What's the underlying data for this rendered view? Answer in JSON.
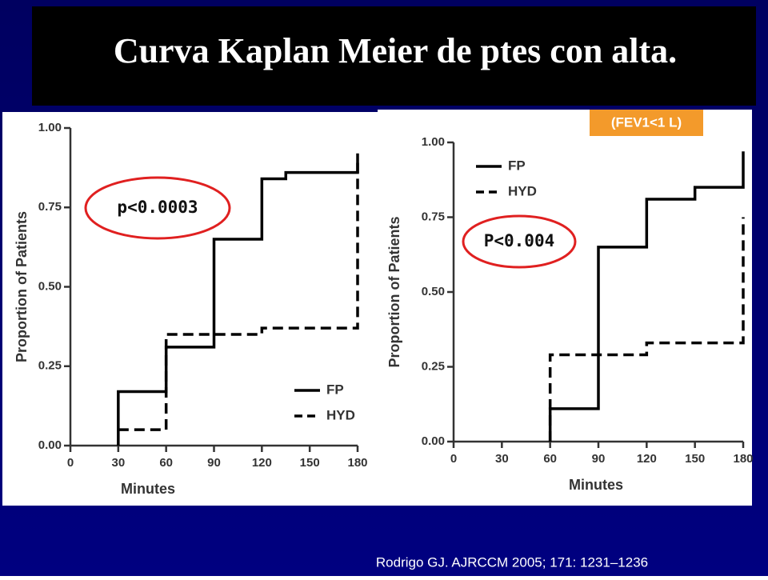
{
  "title": "Curva Kaplan Meier de ptes con alta.",
  "tag": "(FEV1<1 L)",
  "citation": "Rodrigo GJ. AJRCCM 2005; 171: 1231–1236",
  "chart_data": [
    {
      "type": "line",
      "ylabel": "Proportion of Patients",
      "xlabel": "Minutes",
      "annotation": "p<0.0003",
      "legend": "lower right",
      "xlim": [
        0,
        180
      ],
      "ylim": [
        0,
        1
      ],
      "xticks": [
        0,
        30,
        60,
        90,
        120,
        150,
        180
      ],
      "yticks": [
        {
          "value": 0,
          "label": "0.00"
        },
        {
          "value": 0.25,
          "label": "0.25"
        },
        {
          "value": 0.5,
          "label": "0.50"
        },
        {
          "value": 0.75,
          "label": "0.75"
        },
        {
          "value": 1,
          "label": "1.00"
        }
      ],
      "series": [
        {
          "name": "FP",
          "color": "#000000",
          "dashed": false,
          "x": [
            30,
            30,
            60,
            60,
            90,
            90,
            120,
            120,
            135,
            135,
            180,
            180
          ],
          "values": [
            0,
            0.17,
            0.17,
            0.31,
            0.31,
            0.65,
            0.65,
            0.84,
            0.84,
            0.86,
            0.86,
            0.92
          ]
        },
        {
          "name": "HYD",
          "color": "#000000",
          "dashed": true,
          "x": [
            30,
            60,
            60,
            120,
            120,
            180,
            180
          ],
          "values": [
            0.05,
            0.05,
            0.35,
            0.35,
            0.37,
            0.37,
            0.89
          ]
        }
      ]
    },
    {
      "type": "line",
      "ylabel": "Proportion of Patients",
      "xlabel": "Minutes",
      "annotation": "P<0.004",
      "legend": "upper left",
      "xlim": [
        0,
        180
      ],
      "ylim": [
        0,
        1
      ],
      "xticks": [
        0,
        30,
        60,
        90,
        120,
        150,
        180
      ],
      "yticks": [
        {
          "value": 0,
          "label": "0.00"
        },
        {
          "value": 0.25,
          "label": "0.25"
        },
        {
          "value": 0.5,
          "label": "0.50"
        },
        {
          "value": 0.75,
          "label": "0.75"
        },
        {
          "value": 1,
          "label": "1.00"
        }
      ],
      "series": [
        {
          "name": "FP",
          "color": "#000000",
          "dashed": false,
          "x": [
            60,
            60,
            90,
            90,
            120,
            120,
            150,
            150,
            180,
            180
          ],
          "values": [
            0,
            0.11,
            0.11,
            0.65,
            0.65,
            0.81,
            0.81,
            0.85,
            0.85,
            0.97
          ]
        },
        {
          "name": "HYD",
          "color": "#000000",
          "dashed": true,
          "x": [
            60,
            60,
            120,
            120,
            180,
            180
          ],
          "values": [
            0,
            0.29,
            0.29,
            0.33,
            0.33,
            0.75
          ]
        }
      ]
    }
  ]
}
